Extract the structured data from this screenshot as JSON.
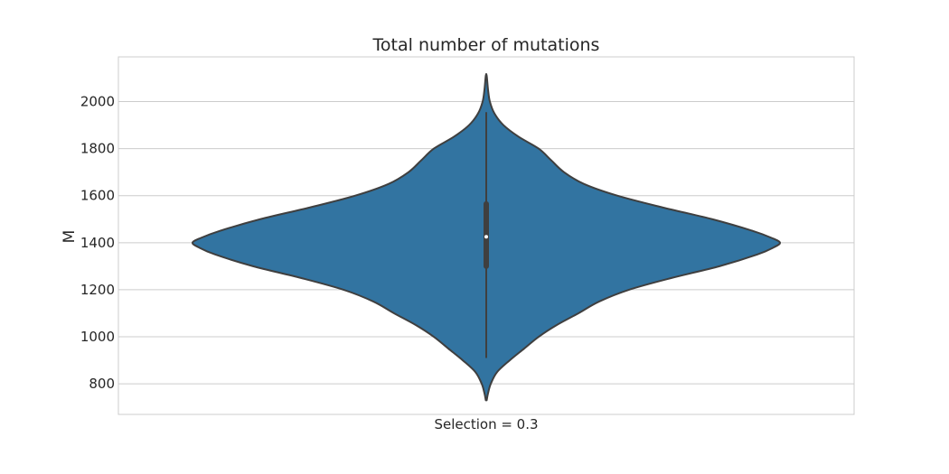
{
  "chart_data": {
    "type": "violin",
    "title": "Total number of mutations",
    "xlabel": "",
    "ylabel": "M",
    "categories": [
      "Selection = 0.3"
    ],
    "ylim": [
      670,
      2190
    ],
    "yticks": [
      800,
      1000,
      1200,
      1400,
      1600,
      1800,
      2000
    ],
    "grid": true,
    "color": "#3274a1",
    "edge_color": "#3f3f3f",
    "violin_profile": [
      {
        "y": 730,
        "half_width": 0.5
      },
      {
        "y": 760,
        "half_width": 2
      },
      {
        "y": 800,
        "half_width": 5
      },
      {
        "y": 850,
        "half_width": 12
      },
      {
        "y": 900,
        "half_width": 26
      },
      {
        "y": 950,
        "half_width": 42
      },
      {
        "y": 1000,
        "half_width": 58
      },
      {
        "y": 1050,
        "half_width": 78
      },
      {
        "y": 1100,
        "half_width": 102
      },
      {
        "y": 1150,
        "half_width": 125
      },
      {
        "y": 1200,
        "half_width": 158
      },
      {
        "y": 1250,
        "half_width": 205
      },
      {
        "y": 1300,
        "half_width": 258
      },
      {
        "y": 1350,
        "half_width": 300
      },
      {
        "y": 1380,
        "half_width": 318
      },
      {
        "y": 1400,
        "half_width": 325
      },
      {
        "y": 1420,
        "half_width": 316
      },
      {
        "y": 1450,
        "half_width": 295
      },
      {
        "y": 1500,
        "half_width": 250
      },
      {
        "y": 1550,
        "half_width": 195
      },
      {
        "y": 1600,
        "half_width": 145
      },
      {
        "y": 1650,
        "half_width": 108
      },
      {
        "y": 1700,
        "half_width": 86
      },
      {
        "y": 1750,
        "half_width": 72
      },
      {
        "y": 1800,
        "half_width": 58
      },
      {
        "y": 1850,
        "half_width": 36
      },
      {
        "y": 1900,
        "half_width": 19
      },
      {
        "y": 1950,
        "half_width": 9
      },
      {
        "y": 2000,
        "half_width": 4
      },
      {
        "y": 2050,
        "half_width": 2
      },
      {
        "y": 2110,
        "half_width": 0.5
      }
    ],
    "box": {
      "whisker_low": 910,
      "q1": 1300,
      "median": 1425,
      "q3": 1565,
      "whisker_high": 1955
    }
  }
}
